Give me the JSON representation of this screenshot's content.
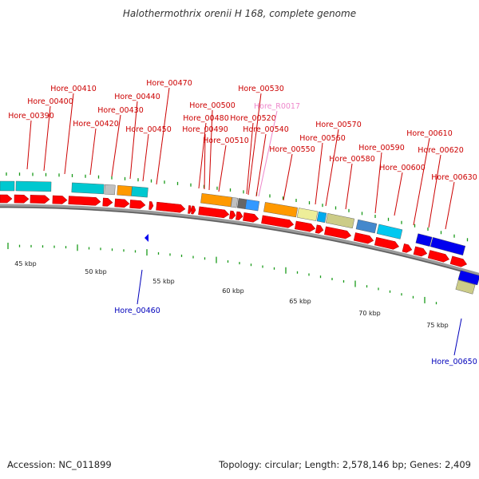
{
  "title": "Halothermothrix orenii H 168, complete genome",
  "footer": {
    "accession": "Accession: NC_011899",
    "summary": "Topology: circular; Length: 2,578,146 bp; Genes: 2,409"
  },
  "colors": {
    "backbone": "#7a7a7a",
    "cds": "#ff0000",
    "tick": "#1a9a1a",
    "label_plus": "#cc0000",
    "label_minus": "#0000bb",
    "label_rna": "#ee88cc"
  },
  "scale_ticks": [
    "45 kbp",
    "50 kbp",
    "55 kbp",
    "60 kbp",
    "65 kbp",
    "70 kbp",
    "75 kbp"
  ],
  "gene_labels": [
    {
      "name": "Hore_00390",
      "kind": "plus"
    },
    {
      "name": "Hore_00400",
      "kind": "plus"
    },
    {
      "name": "Hore_00410",
      "kind": "plus"
    },
    {
      "name": "Hore_00420",
      "kind": "plus"
    },
    {
      "name": "Hore_00430",
      "kind": "plus"
    },
    {
      "name": "Hore_00440",
      "kind": "plus"
    },
    {
      "name": "Hore_00450",
      "kind": "plus"
    },
    {
      "name": "Hore_00470",
      "kind": "plus"
    },
    {
      "name": "Hore_00480",
      "kind": "plus"
    },
    {
      "name": "Hore_00490",
      "kind": "plus"
    },
    {
      "name": "Hore_00500",
      "kind": "plus"
    },
    {
      "name": "Hore_00510",
      "kind": "plus"
    },
    {
      "name": "Hore_00520",
      "kind": "plus"
    },
    {
      "name": "Hore_00530",
      "kind": "plus"
    },
    {
      "name": "Hore_R0017",
      "kind": "rna"
    },
    {
      "name": "Hore_00540",
      "kind": "plus"
    },
    {
      "name": "Hore_00550",
      "kind": "plus"
    },
    {
      "name": "Hore_00560",
      "kind": "plus"
    },
    {
      "name": "Hore_00570",
      "kind": "plus"
    },
    {
      "name": "Hore_00580",
      "kind": "plus"
    },
    {
      "name": "Hore_00590",
      "kind": "plus"
    },
    {
      "name": "Hore_00600",
      "kind": "plus"
    },
    {
      "name": "Hore_00610",
      "kind": "plus"
    },
    {
      "name": "Hore_00620",
      "kind": "plus"
    },
    {
      "name": "Hore_00630",
      "kind": "plus"
    },
    {
      "name": "Hore_00460",
      "kind": "minus"
    },
    {
      "name": "Hore_00650",
      "kind": "minus"
    }
  ]
}
